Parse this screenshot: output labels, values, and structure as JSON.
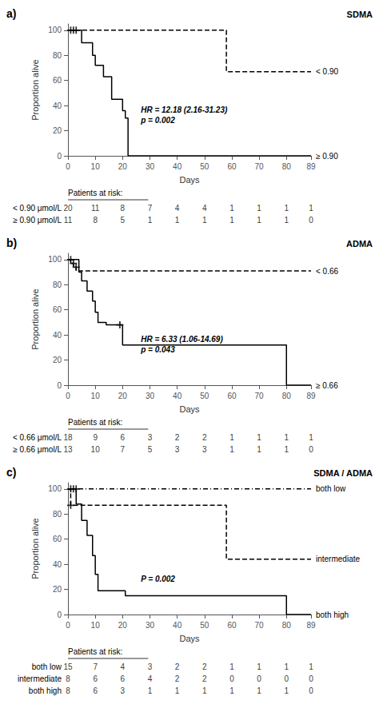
{
  "chart_data": [
    {
      "type": "step",
      "label": "a)",
      "title": "SDMA",
      "xlabel": "Days",
      "ylabel": "Proportion alive",
      "xlim": [
        0,
        89
      ],
      "ylim": [
        0,
        105
      ],
      "xticks": [
        0,
        10,
        20,
        30,
        40,
        50,
        60,
        70,
        80,
        89
      ],
      "yticks": [
        0,
        20,
        40,
        60,
        80,
        100
      ],
      "grid": false,
      "annotations": [
        "HR = 12.18 (2.16-31.23)",
        "p = 0.002"
      ],
      "series": [
        {
          "name": "≥ 0.90",
          "color": "#000000",
          "line_style": "solid",
          "x": [
            0,
            5,
            9,
            10,
            13,
            16,
            20,
            21,
            22,
            24,
            57,
            80,
            89
          ],
          "values": [
            100,
            90,
            80,
            72,
            63,
            45,
            36,
            30,
            0,
            0,
            0,
            0,
            0
          ]
        },
        {
          "name": "< 0.90",
          "color": "#000000",
          "line_style": "dashed",
          "x": [
            0,
            1,
            2,
            3,
            57,
            58,
            80,
            89
          ],
          "values": [
            100,
            100,
            100,
            100,
            100,
            67,
            67,
            67
          ],
          "censor_x": [
            1,
            2,
            3
          ],
          "censor_y": [
            100,
            100,
            100
          ]
        }
      ],
      "risk_table": {
        "title": "Patients at risk:",
        "rows": [
          {
            "label": "< 0.90 μmol/L",
            "values": [
              20,
              11,
              8,
              7,
              4,
              4,
              1,
              1,
              1,
              1
            ]
          },
          {
            "label": "≥ 0.90 μmol/L",
            "values": [
              11,
              8,
              5,
              1,
              1,
              1,
              1,
              1,
              1,
              0
            ]
          }
        ]
      }
    },
    {
      "type": "step",
      "label": "b)",
      "title": "ADMA",
      "xlabel": "Days",
      "ylabel": "Proportion alive",
      "xlim": [
        0,
        89
      ],
      "ylim": [
        0,
        105
      ],
      "xticks": [
        0,
        10,
        20,
        30,
        40,
        50,
        60,
        70,
        80,
        89
      ],
      "yticks": [
        0,
        20,
        40,
        60,
        80,
        100
      ],
      "grid": false,
      "annotations": [
        "HR = 6.33 (1.06-14.69)",
        "p = 0.043"
      ],
      "series": [
        {
          "name": "≥ 0.66",
          "color": "#000000",
          "line_style": "solid",
          "x": [
            0,
            4,
            5,
            7,
            9,
            10,
            11,
            14,
            16,
            19,
            20,
            22,
            57,
            80,
            89
          ],
          "values": [
            100,
            90,
            83,
            75,
            67,
            58,
            50,
            48,
            48,
            48,
            32,
            32,
            32,
            0,
            0
          ],
          "censor_x": [
            19
          ],
          "censor_y": [
            48
          ]
        },
        {
          "name": "< 0.66",
          "color": "#000000",
          "line_style": "dashed",
          "x": [
            0,
            1,
            2,
            3,
            80,
            89
          ],
          "values": [
            100,
            97,
            94,
            91,
            91,
            91
          ],
          "censor_x": [
            1,
            2,
            3
          ],
          "censor_y": [
            100,
            97,
            94
          ]
        }
      ],
      "risk_table": {
        "title": "Patients at risk:",
        "rows": [
          {
            "label": "< 0.66 μmol/L",
            "values": [
              18,
              9,
              6,
              3,
              2,
              2,
              1,
              1,
              1,
              1
            ]
          },
          {
            "label": "≥ 0.66 μmol/L",
            "values": [
              13,
              10,
              7,
              5,
              3,
              3,
              1,
              1,
              1,
              0
            ]
          }
        ]
      }
    },
    {
      "type": "step",
      "label": "c)",
      "title": "SDMA / ADMA",
      "xlabel": "Days",
      "ylabel": "Proportion alive",
      "xlim": [
        0,
        89
      ],
      "ylim": [
        0,
        105
      ],
      "xticks": [
        0,
        10,
        20,
        30,
        40,
        50,
        60,
        70,
        80,
        89
      ],
      "yticks": [
        0,
        20,
        40,
        60,
        80,
        100
      ],
      "grid": false,
      "annotations": [
        "P = 0.002"
      ],
      "series": [
        {
          "name": "both high",
          "color": "#000000",
          "line_style": "solid",
          "x": [
            0,
            3,
            5,
            7,
            9,
            10,
            11,
            14,
            16,
            19,
            20,
            21,
            57,
            80,
            89
          ],
          "values": [
            100,
            88,
            75,
            63,
            47,
            32,
            19,
            19,
            19,
            19,
            19,
            15,
            15,
            0,
            0
          ]
        },
        {
          "name": "intermediate",
          "color": "#000000",
          "line_style": "dashed",
          "x": [
            0,
            1,
            3,
            57,
            58,
            80,
            89
          ],
          "values": [
            100,
            87,
            87,
            87,
            44,
            44,
            44
          ],
          "censor_x": [
            1
          ],
          "censor_y": [
            87
          ]
        },
        {
          "name": "both low",
          "color": "#000000",
          "line_style": "dashdot",
          "x": [
            0,
            1,
            2,
            3,
            80,
            89
          ],
          "values": [
            100,
            100,
            100,
            100,
            100,
            100
          ],
          "censor_x": [
            1,
            2,
            3
          ],
          "censor_y": [
            100,
            100,
            100
          ]
        }
      ],
      "risk_table": {
        "title": "Patients at risk:",
        "rows": [
          {
            "label": "both low",
            "values": [
              15,
              7,
              4,
              3,
              2,
              2,
              1,
              1,
              1,
              1
            ]
          },
          {
            "label": "intermediate",
            "values": [
              8,
              6,
              6,
              4,
              2,
              2,
              0,
              0,
              0,
              0
            ]
          },
          {
            "label": "both high",
            "values": [
              8,
              6,
              3,
              1,
              1,
              1,
              1,
              1,
              1,
              0
            ]
          }
        ]
      }
    }
  ]
}
